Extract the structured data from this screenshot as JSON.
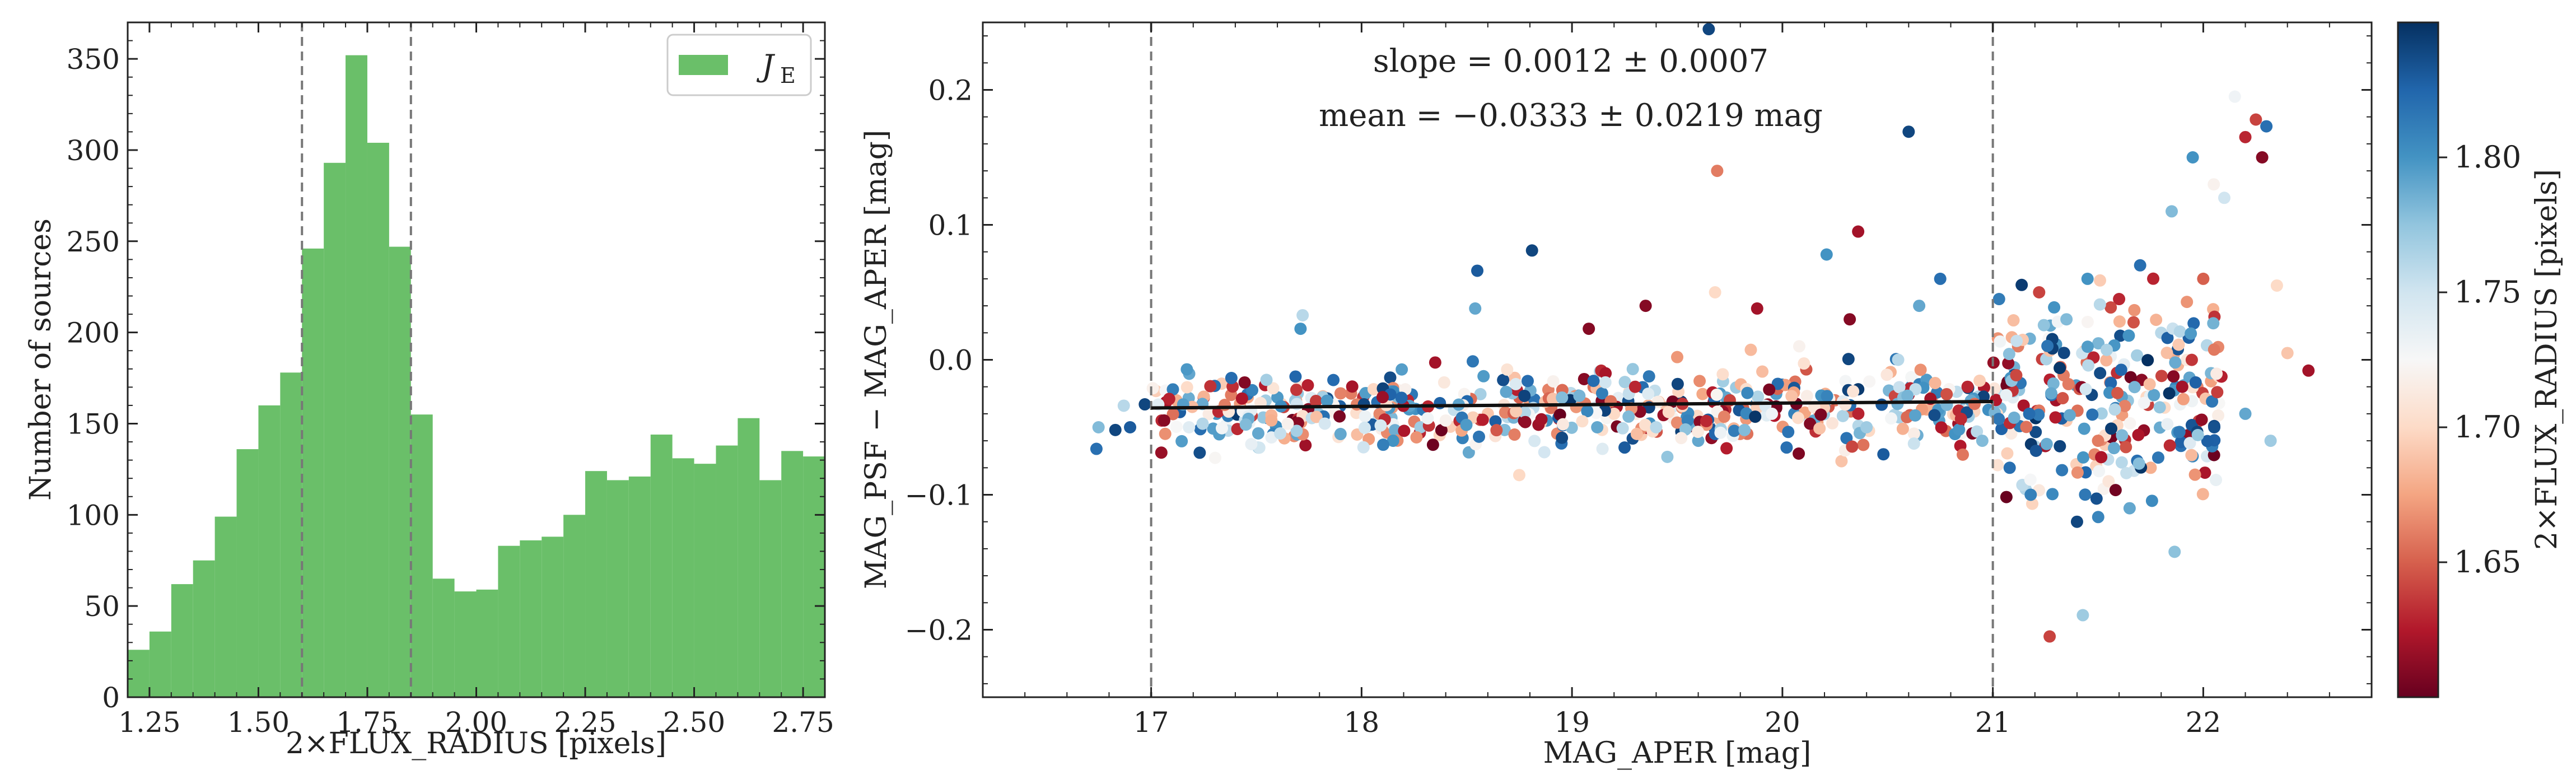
{
  "chart_data": [
    {
      "type": "bar",
      "name": "histogram",
      "xlabel": "2×FLUX_RADIUS [pixels]",
      "ylabel": "Number of sources",
      "xlim": [
        1.2,
        2.8
      ],
      "ylim": [
        0,
        370
      ],
      "xticks": [
        1.25,
        1.5,
        1.75,
        2.0,
        2.25,
        2.5,
        2.75
      ],
      "xtick_labels": [
        "1.25",
        "1.50",
        "1.75",
        "2.00",
        "2.25",
        "2.50",
        "2.75"
      ],
      "yticks": [
        0,
        50,
        100,
        150,
        200,
        250,
        300,
        350
      ],
      "ytick_labels": [
        "0",
        "50",
        "100",
        "150",
        "200",
        "250",
        "300",
        "350"
      ],
      "bin_start": 1.2,
      "bin_width": 0.05,
      "values": [
        26,
        36,
        62,
        75,
        99,
        136,
        160,
        178,
        246,
        293,
        352,
        304,
        247,
        155,
        65,
        58,
        59,
        83,
        86,
        88,
        100,
        124,
        119,
        121,
        144,
        131,
        128,
        138,
        153,
        119,
        135,
        132
      ],
      "bar_color": "#6abf69",
      "legend": {
        "label_main": "J",
        "label_sub": "E",
        "placement": "top-right"
      },
      "vlines": [
        1.6,
        1.85
      ]
    },
    {
      "type": "scatter",
      "name": "scatter",
      "xlabel": "MAG_APER [mag]",
      "ylabel": "MAG_PSF − MAG_APER [mag]",
      "xlim": [
        16.2,
        22.8
      ],
      "ylim": [
        -0.25,
        0.25
      ],
      "xticks": [
        17,
        18,
        19,
        20,
        21,
        22
      ],
      "xtick_labels": [
        "17",
        "18",
        "19",
        "20",
        "21",
        "22"
      ],
      "yticks": [
        -0.2,
        -0.1,
        0.0,
        0.1,
        0.2
      ],
      "ytick_labels": [
        "−0.2",
        "−0.1",
        "0.0",
        "0.1",
        "0.2"
      ],
      "vlines": [
        17,
        21
      ],
      "fit_line": {
        "x": [
          17,
          21
        ],
        "y": [
          -0.0357,
          -0.0309
        ]
      },
      "annotations": [
        "slope = 0.0012 ± 0.0007",
        "mean = −0.0333 ± 0.0219 mag"
      ],
      "colorbar": {
        "label": "2×FLUX_RADIUS [pixels]",
        "range": [
          1.6,
          1.85
        ],
        "ticks": [
          1.65,
          1.7,
          1.75,
          1.8
        ],
        "tick_labels": [
          "1.65",
          "1.70",
          "1.75",
          "1.80"
        ],
        "colormap": "RdBu",
        "stops": [
          "#67001f",
          "#b2182b",
          "#d6604d",
          "#f4a582",
          "#fddbc7",
          "#f7f7f7",
          "#d1e5f0",
          "#92c5de",
          "#4393c3",
          "#2166ac",
          "#053061"
        ]
      },
      "points": [
        [
          16.74,
          -0.066,
          1.82
        ],
        [
          16.75,
          -0.05,
          1.78
        ],
        [
          16.83,
          -0.052,
          1.84
        ],
        [
          16.87,
          -0.034,
          1.76
        ],
        [
          16.9,
          -0.05,
          1.83
        ],
        [
          16.97,
          -0.033,
          1.84
        ],
        [
          17.05,
          -0.045,
          1.63
        ],
        [
          17.12,
          -0.03,
          1.68
        ],
        [
          17.18,
          -0.05,
          1.74
        ],
        [
          17.25,
          -0.028,
          1.62
        ],
        [
          17.31,
          -0.04,
          1.8
        ],
        [
          17.38,
          -0.026,
          1.66
        ],
        [
          17.45,
          -0.048,
          1.78
        ],
        [
          17.52,
          -0.032,
          1.71
        ],
        [
          17.58,
          -0.055,
          1.81
        ],
        [
          17.63,
          -0.035,
          1.64
        ],
        [
          17.72,
          0.033,
          1.76
        ],
        [
          17.71,
          0.023,
          1.8
        ],
        [
          17.82,
          -0.042,
          1.82
        ],
        [
          17.9,
          -0.055,
          1.79
        ],
        [
          17.95,
          -0.025,
          1.66
        ],
        [
          18.05,
          -0.048,
          1.83
        ],
        [
          18.1,
          -0.035,
          1.68
        ],
        [
          18.15,
          -0.06,
          1.8
        ],
        [
          18.22,
          -0.03,
          1.63
        ],
        [
          18.28,
          -0.05,
          1.77
        ],
        [
          18.35,
          -0.002,
          1.62
        ],
        [
          18.4,
          -0.045,
          1.72
        ],
        [
          18.48,
          -0.058,
          1.81
        ],
        [
          18.55,
          0.066,
          1.83
        ],
        [
          18.54,
          0.038,
          1.79
        ],
        [
          18.6,
          -0.04,
          1.69
        ],
        [
          18.68,
          -0.052,
          1.78
        ],
        [
          18.75,
          -0.028,
          1.65
        ],
        [
          18.81,
          0.081,
          1.84
        ],
        [
          18.88,
          -0.045,
          1.8
        ],
        [
          18.95,
          -0.062,
          1.82
        ],
        [
          19.02,
          -0.035,
          1.67
        ],
        [
          19.08,
          0.023,
          1.61
        ],
        [
          19.12,
          -0.05,
          1.79
        ],
        [
          19.2,
          -0.04,
          1.7
        ],
        [
          19.25,
          -0.065,
          1.83
        ],
        [
          19.3,
          -0.02,
          1.63
        ],
        [
          19.35,
          0.04,
          1.61
        ],
        [
          19.4,
          -0.05,
          1.76
        ],
        [
          19.45,
          -0.035,
          1.69
        ],
        [
          19.5,
          0.002,
          1.67
        ],
        [
          19.55,
          -0.045,
          1.81
        ],
        [
          19.6,
          -0.06,
          1.79
        ],
        [
          19.65,
          0.245,
          1.84
        ],
        [
          19.69,
          0.14,
          1.66
        ],
        [
          19.68,
          0.05,
          1.7
        ],
        [
          19.75,
          -0.03,
          1.64
        ],
        [
          19.82,
          -0.052,
          1.78
        ],
        [
          19.88,
          0.038,
          1.62
        ],
        [
          19.95,
          -0.04,
          1.73
        ],
        [
          20.02,
          -0.065,
          1.82
        ],
        [
          20.08,
          0.01,
          1.72
        ],
        [
          20.15,
          -0.045,
          1.79
        ],
        [
          20.21,
          0.078,
          1.8
        ],
        [
          20.25,
          -0.03,
          1.66
        ],
        [
          20.32,
          0.03,
          1.61
        ],
        [
          20.36,
          0.095,
          1.62
        ],
        [
          20.4,
          -0.05,
          1.77
        ],
        [
          20.48,
          -0.07,
          1.83
        ],
        [
          20.55,
          0.0,
          1.76
        ],
        [
          20.6,
          0.169,
          1.84
        ],
        [
          20.65,
          0.04,
          1.79
        ],
        [
          20.7,
          -0.035,
          1.68
        ],
        [
          20.75,
          0.06,
          1.82
        ],
        [
          20.82,
          -0.055,
          1.8
        ],
        [
          20.88,
          -0.02,
          1.63
        ],
        [
          20.95,
          -0.06,
          1.78
        ],
        [
          21.02,
          -0.04,
          1.7
        ],
        [
          21.08,
          -0.08,
          1.82
        ],
        [
          21.12,
          0.01,
          1.66
        ],
        [
          21.18,
          -0.1,
          1.81
        ],
        [
          21.22,
          0.05,
          1.64
        ],
        [
          21.27,
          -0.205,
          1.64
        ],
        [
          21.3,
          -0.03,
          1.62
        ],
        [
          21.35,
          0.03,
          1.78
        ],
        [
          21.4,
          -0.12,
          1.84
        ],
        [
          21.45,
          0.06,
          1.8
        ],
        [
          21.5,
          -0.06,
          1.66
        ],
        [
          21.55,
          -0.09,
          1.71
        ],
        [
          21.6,
          0.045,
          1.63
        ],
        [
          21.65,
          -0.11,
          1.79
        ],
        [
          21.7,
          0.07,
          1.82
        ],
        [
          21.75,
          -0.08,
          1.68
        ],
        [
          21.8,
          0.02,
          1.76
        ],
        [
          21.85,
          0.11,
          1.78
        ],
        [
          21.9,
          -0.02,
          1.62
        ],
        [
          21.95,
          0.15,
          1.8
        ],
        [
          22.0,
          0.06,
          1.65
        ],
        [
          22.05,
          0.13,
          1.72
        ],
        [
          22.1,
          0.12,
          1.75
        ],
        [
          22.15,
          0.195,
          1.73
        ],
        [
          22.2,
          0.165,
          1.63
        ],
        [
          22.25,
          0.178,
          1.64
        ],
        [
          22.3,
          0.173,
          1.82
        ],
        [
          22.32,
          -0.06,
          1.77
        ],
        [
          22.35,
          0.055,
          1.7
        ],
        [
          22.4,
          0.005,
          1.69
        ],
        [
          22.5,
          -0.008,
          1.62
        ],
        [
          22.28,
          0.15,
          1.61
        ],
        [
          22.2,
          -0.04,
          1.79
        ]
      ],
      "cloud": [
        {
          "x0": 17.0,
          "x1": 21.0,
          "mean": -0.037,
          "sd": 0.014,
          "n": 520
        },
        {
          "x0": 21.0,
          "x1": 22.1,
          "mean": -0.03,
          "sd": 0.04,
          "n": 260
        }
      ]
    }
  ]
}
